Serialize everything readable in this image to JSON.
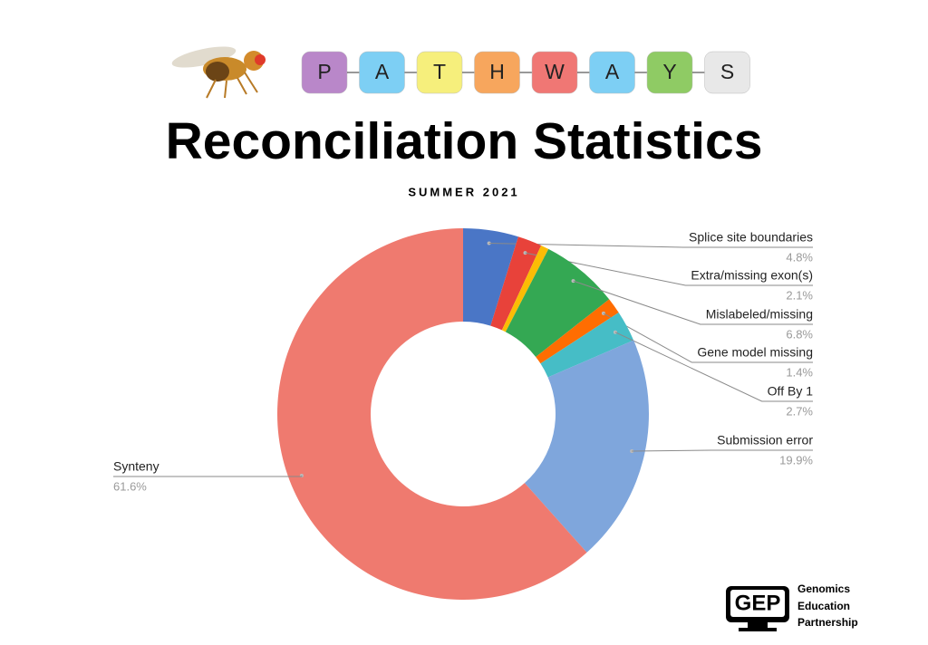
{
  "header": {
    "letters": [
      "P",
      "A",
      "T",
      "H",
      "W",
      "A",
      "Y",
      "S"
    ],
    "title": "Reconciliation Statistics",
    "subtitle": "SUMMER 2021"
  },
  "chart_data": {
    "type": "donut",
    "categories": [
      "Splice site boundaries",
      "Extra/missing exon(s)",
      null,
      "Mislabeled/missing",
      "Gene model missing",
      "Off By 1",
      "Submission error",
      "Synteny"
    ],
    "values": [
      4.8,
      2.1,
      0.7,
      6.8,
      1.4,
      2.7,
      19.9,
      61.6
    ],
    "value_labels": [
      "4.8%",
      "2.1%",
      null,
      "6.8%",
      "1.4%",
      "2.7%",
      "19.9%",
      "61.6%"
    ],
    "colors": [
      "#4a76c6",
      "#e8423a",
      "#fbbc05",
      "#34a853",
      "#ff6d01",
      "#46bdc6",
      "#7fa6dc",
      "#ef7a6f"
    ]
  },
  "footer": {
    "logo": "GEP",
    "lines": [
      "Genomics",
      "Education",
      "Partnership"
    ]
  }
}
